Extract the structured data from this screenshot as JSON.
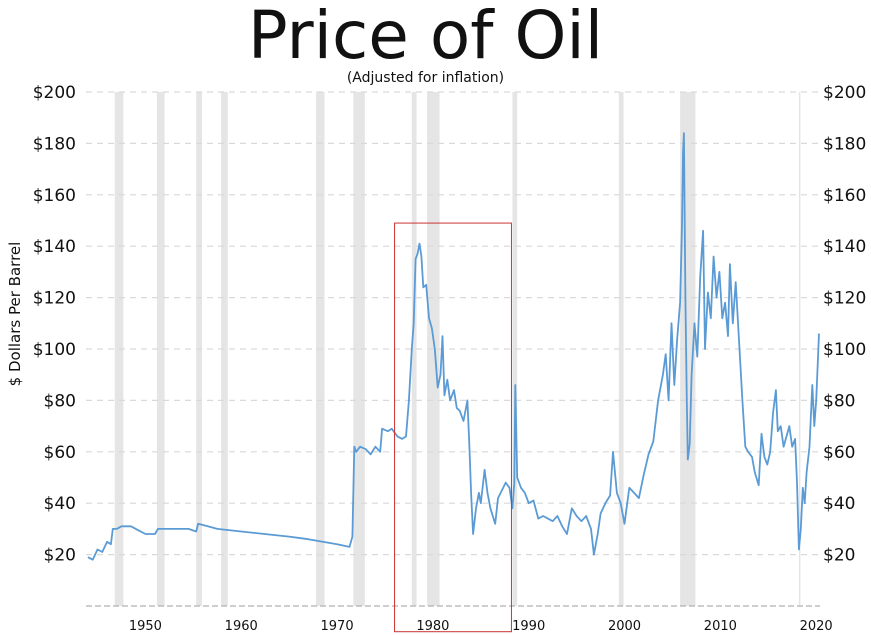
{
  "chart_data": {
    "type": "line",
    "title": "Price of Oil",
    "subtitle": "(Adjusted for inflation)",
    "ylabel": "$ Dollars Per Barrel",
    "xlabel": "",
    "xlim": [
      1943.8,
      2020.4
    ],
    "ylim": [
      0,
      200
    ],
    "x_ticks": [
      1950,
      1960,
      1970,
      1980,
      1990,
      2000,
      2010,
      2020
    ],
    "x_tick_labels": [
      "1950",
      "1960",
      "1970",
      "1980",
      "1990",
      "2000",
      "2010",
      "2020"
    ],
    "y_ticks": [
      20,
      40,
      60,
      80,
      100,
      120,
      140,
      160,
      180,
      200
    ],
    "y_tick_labels": [
      "$20",
      "$40",
      "$60",
      "$80",
      "$100",
      "$120",
      "$140",
      "$160",
      "$180",
      "$200"
    ],
    "grid": true,
    "line_color": "#5b9bd5",
    "recession_color": "#e5e5e5",
    "highlight_color": "#cc3333",
    "recession_bands": [
      [
        1946.8,
        1947.7
      ],
      [
        1951.2,
        1952.0
      ],
      [
        1955.3,
        1955.9
      ],
      [
        1957.9,
        1958.6
      ],
      [
        1967.8,
        1968.7
      ],
      [
        1971.7,
        1972.9
      ],
      [
        1977.8,
        1978.3
      ],
      [
        1979.4,
        1980.7
      ],
      [
        1988.3,
        1988.8
      ],
      [
        1999.4,
        1999.9
      ],
      [
        2005.8,
        2007.4
      ],
      [
        2018.2,
        2018.3
      ]
    ],
    "highlight_box": {
      "x": [
        1976.0,
        1988.2
      ],
      "y": [
        -10,
        149
      ]
    },
    "series": [
      {
        "values": [
          [
            1944.0,
            19
          ],
          [
            1944.5,
            18
          ],
          [
            1945.0,
            22
          ],
          [
            1945.5,
            21
          ],
          [
            1946.0,
            25
          ],
          [
            1946.4,
            24
          ],
          [
            1946.6,
            30
          ],
          [
            1947.0,
            30
          ],
          [
            1947.5,
            31
          ],
          [
            1948.5,
            31
          ],
          [
            1949.0,
            30
          ],
          [
            1950.0,
            28
          ],
          [
            1951.0,
            28
          ],
          [
            1951.3,
            30
          ],
          [
            1953.0,
            30
          ],
          [
            1954.5,
            30
          ],
          [
            1955.3,
            29
          ],
          [
            1955.5,
            32
          ],
          [
            1956.5,
            31
          ],
          [
            1957.5,
            30
          ],
          [
            1960.0,
            29
          ],
          [
            1965.0,
            27
          ],
          [
            1967.0,
            26
          ],
          [
            1968.5,
            25
          ],
          [
            1970.0,
            24
          ],
          [
            1971.3,
            23
          ],
          [
            1971.6,
            27
          ],
          [
            1971.8,
            62
          ],
          [
            1972.0,
            60
          ],
          [
            1972.4,
            62
          ],
          [
            1973.0,
            61
          ],
          [
            1973.5,
            59
          ],
          [
            1974.0,
            62
          ],
          [
            1974.5,
            60
          ],
          [
            1974.7,
            69
          ],
          [
            1975.3,
            68
          ],
          [
            1975.7,
            69
          ],
          [
            1976.3,
            66
          ],
          [
            1976.8,
            65
          ],
          [
            1977.2,
            66
          ],
          [
            1977.5,
            80
          ],
          [
            1977.8,
            100
          ],
          [
            1978.0,
            110
          ],
          [
            1978.2,
            135
          ],
          [
            1978.4,
            137
          ],
          [
            1978.6,
            141
          ],
          [
            1978.8,
            136
          ],
          [
            1979.0,
            124
          ],
          [
            1979.3,
            125
          ],
          [
            1979.6,
            112
          ],
          [
            1979.9,
            108
          ],
          [
            1980.2,
            100
          ],
          [
            1980.5,
            85
          ],
          [
            1980.8,
            90
          ],
          [
            1981.0,
            105
          ],
          [
            1981.2,
            82
          ],
          [
            1981.5,
            88
          ],
          [
            1981.8,
            80
          ],
          [
            1982.2,
            84
          ],
          [
            1982.5,
            77
          ],
          [
            1982.8,
            76
          ],
          [
            1983.2,
            72
          ],
          [
            1983.6,
            80
          ],
          [
            1983.8,
            63
          ],
          [
            1984.0,
            43
          ],
          [
            1984.2,
            28
          ],
          [
            1984.5,
            38
          ],
          [
            1984.8,
            44
          ],
          [
            1985.0,
            40
          ],
          [
            1985.4,
            53
          ],
          [
            1985.7,
            44
          ],
          [
            1986.0,
            38
          ],
          [
            1986.5,
            32
          ],
          [
            1986.8,
            42
          ],
          [
            1987.2,
            45
          ],
          [
            1987.6,
            48
          ],
          [
            1988.0,
            46
          ],
          [
            1988.3,
            38
          ],
          [
            1988.5,
            48
          ],
          [
            1988.6,
            86
          ],
          [
            1988.8,
            50
          ],
          [
            1989.2,
            46
          ],
          [
            1989.6,
            44
          ],
          [
            1990.0,
            40
          ],
          [
            1990.5,
            41
          ],
          [
            1991.0,
            34
          ],
          [
            1991.5,
            35
          ],
          [
            1992.0,
            34
          ],
          [
            1992.5,
            33
          ],
          [
            1993.0,
            35
          ],
          [
            1993.5,
            31
          ],
          [
            1994.0,
            28
          ],
          [
            1994.5,
            38
          ],
          [
            1995.0,
            35
          ],
          [
            1995.5,
            33
          ],
          [
            1996.0,
            35
          ],
          [
            1996.5,
            30
          ],
          [
            1996.8,
            20
          ],
          [
            1997.2,
            28
          ],
          [
            1997.5,
            36
          ],
          [
            1998.0,
            40
          ],
          [
            1998.5,
            43
          ],
          [
            1998.8,
            60
          ],
          [
            1999.2,
            44
          ],
          [
            1999.6,
            40
          ],
          [
            2000.0,
            32
          ],
          [
            2000.5,
            46
          ],
          [
            2001.0,
            44
          ],
          [
            2001.5,
            42
          ],
          [
            2002.0,
            51
          ],
          [
            2002.5,
            59
          ],
          [
            2003.0,
            64
          ],
          [
            2003.5,
            80
          ],
          [
            2004.0,
            90
          ],
          [
            2004.3,
            98
          ],
          [
            2004.6,
            80
          ],
          [
            2004.9,
            110
          ],
          [
            2005.2,
            86
          ],
          [
            2005.5,
            104
          ],
          [
            2005.8,
            118
          ],
          [
            2006.0,
            148
          ],
          [
            2006.1,
            176
          ],
          [
            2006.2,
            184
          ],
          [
            2006.35,
            120
          ],
          [
            2006.5,
            80
          ],
          [
            2006.6,
            57
          ],
          [
            2006.8,
            63
          ],
          [
            2007.0,
            90
          ],
          [
            2007.3,
            110
          ],
          [
            2007.6,
            97
          ],
          [
            2007.9,
            128
          ],
          [
            2008.2,
            146
          ],
          [
            2008.4,
            100
          ],
          [
            2008.7,
            122
          ],
          [
            2009.0,
            112
          ],
          [
            2009.3,
            136
          ],
          [
            2009.6,
            120
          ],
          [
            2009.9,
            130
          ],
          [
            2010.2,
            112
          ],
          [
            2010.5,
            118
          ],
          [
            2010.8,
            105
          ],
          [
            2011.0,
            133
          ],
          [
            2011.3,
            110
          ],
          [
            2011.6,
            126
          ],
          [
            2012.0,
            100
          ],
          [
            2012.3,
            80
          ],
          [
            2012.6,
            62
          ],
          [
            2012.9,
            60
          ],
          [
            2013.3,
            58
          ],
          [
            2013.6,
            52
          ],
          [
            2014.0,
            47
          ],
          [
            2014.3,
            67
          ],
          [
            2014.6,
            58
          ],
          [
            2014.9,
            55
          ],
          [
            2015.2,
            60
          ],
          [
            2015.5,
            75
          ],
          [
            2015.8,
            84
          ],
          [
            2016.0,
            68
          ],
          [
            2016.3,
            70
          ],
          [
            2016.6,
            62
          ],
          [
            2016.9,
            66
          ],
          [
            2017.2,
            70
          ],
          [
            2017.5,
            62
          ],
          [
            2017.8,
            65
          ],
          [
            2018.0,
            48
          ],
          [
            2018.2,
            22
          ],
          [
            2018.4,
            30
          ],
          [
            2018.6,
            46
          ],
          [
            2018.8,
            40
          ],
          [
            2019.0,
            52
          ],
          [
            2019.3,
            62
          ],
          [
            2019.6,
            86
          ],
          [
            2019.8,
            70
          ],
          [
            2020.0,
            80
          ],
          [
            2020.3,
            106
          ]
        ]
      }
    ]
  }
}
